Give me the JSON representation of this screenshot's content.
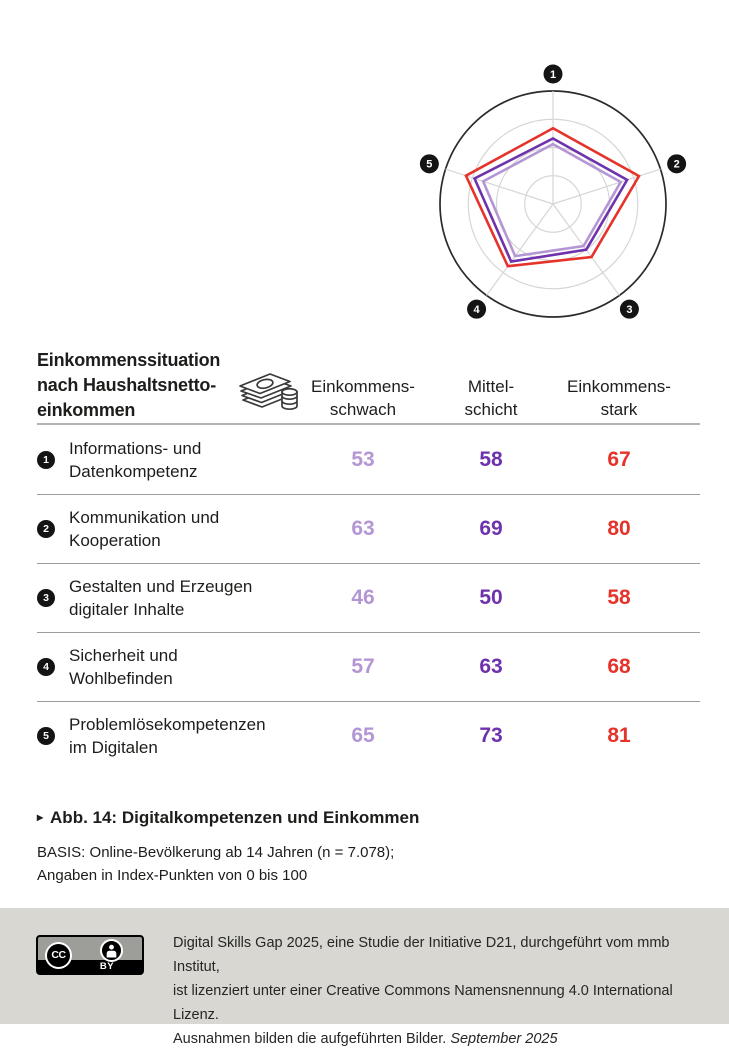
{
  "colors": {
    "einkommensschwach": "#b596d4",
    "mittelschicht": "#6f32ad",
    "einkommensstark": "#e5332c",
    "text": "#1d1d1b",
    "grid": "#d6d6d6",
    "ring": "#2b2b2b",
    "separator": "#9c9c9c",
    "header_rule": "#b3b3b1",
    "footer_bg": "#d8d7d2",
    "badge_gray": "#9d9d99"
  },
  "chart_data": {
    "type": "radar",
    "axis_labels": [
      "1",
      "2",
      "3",
      "4",
      "5"
    ],
    "categories": [
      "Informations- und Datenkompetenz",
      "Kommunikation und Kooperation",
      "Gestalten und Erzeugen digitaler Inhalte",
      "Sicherheit und Wohlbefinden",
      "Problemlösekompetenzen im Digitalen"
    ],
    "series": [
      {
        "name": "Einkommensschwach",
        "color": "#b596d4",
        "values": [
          53,
          63,
          46,
          57,
          65
        ]
      },
      {
        "name": "Mittelschicht",
        "color": "#6f32ad",
        "values": [
          58,
          69,
          50,
          63,
          73
        ]
      },
      {
        "name": "Einkommensstark",
        "color": "#e5332c",
        "values": [
          67,
          80,
          58,
          68,
          81
        ]
      }
    ],
    "rmax": 100,
    "grid_rings": [
      25,
      50,
      75,
      100
    ],
    "legend_position": "none"
  },
  "table": {
    "title_lines": [
      "Einkommenssituation",
      "nach Haushaltsnetto-",
      "einkommen"
    ],
    "columns": [
      {
        "label_lines": [
          "Einkommens-",
          "schwach"
        ]
      },
      {
        "label_lines": [
          "Mittel-",
          "schicht"
        ]
      },
      {
        "label_lines": [
          "Einkommens-",
          "stark"
        ]
      }
    ],
    "rows": [
      {
        "num": "1",
        "label_lines": [
          "Informations- und",
          "Datenkompetenz"
        ],
        "values": [
          "53",
          "58",
          "67"
        ]
      },
      {
        "num": "2",
        "label_lines": [
          "Kommunikation und",
          "Kooperation"
        ],
        "values": [
          "63",
          "69",
          "80"
        ]
      },
      {
        "num": "3",
        "label_lines": [
          "Gestalten und Erzeugen",
          "digitaler Inhalte"
        ],
        "values": [
          "46",
          "50",
          "58"
        ]
      },
      {
        "num": "4",
        "label_lines": [
          "Sicherheit und",
          "Wohlbefinden"
        ],
        "values": [
          "57",
          "63",
          "68"
        ]
      },
      {
        "num": "5",
        "label_lines": [
          "Problemlösekompetenzen",
          "im Digitalen"
        ],
        "values": [
          "65",
          "73",
          "81"
        ]
      }
    ]
  },
  "caption": {
    "bullet": "▸",
    "title": "Abb. 14: Digitalkompetenzen und Einkommen",
    "basis_lines": [
      "BASIS: Online-Bevölkerung ab 14 Jahren (n = 7.078);",
      "Angaben in Index-Punkten von 0 bis 100"
    ]
  },
  "footer": {
    "badge": {
      "cc_label": "CC",
      "by_label": "BY"
    },
    "line1": "Digital Skills Gap 2025, eine Studie der Initiative D21, durchgeführt vom mmb Institut,",
    "line2": "ist lizenziert unter einer Creative Commons Namensnennung 4.0 International Lizenz.",
    "line3": "Ausnahmen bilden die aufgeführten Bilder.",
    "date": "September 2025"
  }
}
